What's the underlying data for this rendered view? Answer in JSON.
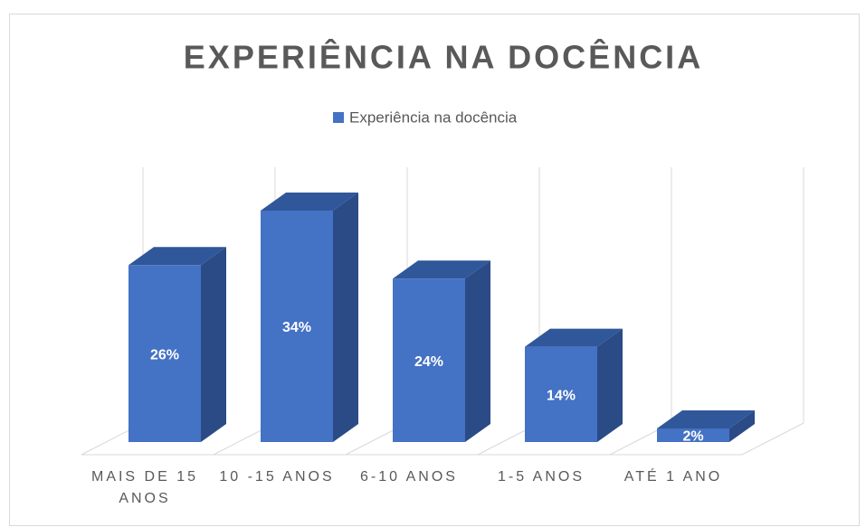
{
  "chart_data": {
    "type": "bar3d",
    "title": "EXPERIÊNCIA NA DOCÊNCIA",
    "categories": [
      "MAIS DE 15 ANOS",
      "10 -15 ANOS",
      "6-10 ANOS",
      "1-5 ANOS",
      "ATÉ 1 ANO"
    ],
    "series": [
      {
        "name": "Experiência na docência",
        "color": "#4472c4",
        "values": [
          26,
          34,
          24,
          14,
          2
        ],
        "value_labels": [
          "26%",
          "34%",
          "24%",
          "14%",
          "2%"
        ]
      }
    ]
  }
}
